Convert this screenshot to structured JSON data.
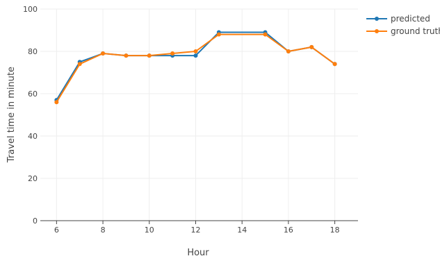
{
  "chart_data": {
    "type": "line",
    "xlabel": "Hour",
    "ylabel": "Travel time in minute",
    "xlim": [
      5.3,
      19.0
    ],
    "ylim": [
      0,
      100
    ],
    "x_ticks": [
      6,
      8,
      10,
      12,
      14,
      16,
      18
    ],
    "y_ticks": [
      0,
      20,
      40,
      60,
      80,
      100
    ],
    "grid": true,
    "legend_position": "top-right",
    "series": [
      {
        "name": "predicted",
        "color": "#1f77b4",
        "x": [
          6,
          7,
          8,
          9,
          10,
          11,
          12,
          13,
          15,
          16,
          17,
          18
        ],
        "values": [
          57,
          75,
          79,
          78,
          78,
          78,
          78,
          89,
          89,
          80,
          82,
          74
        ]
      },
      {
        "name": "ground truth",
        "color": "#ff7f0e",
        "x": [
          6,
          7,
          8,
          9,
          10,
          11,
          12,
          13,
          15,
          16,
          17,
          18
        ],
        "values": [
          56,
          74,
          79,
          78,
          78,
          79,
          80,
          88,
          88,
          80,
          82,
          74
        ]
      }
    ]
  }
}
